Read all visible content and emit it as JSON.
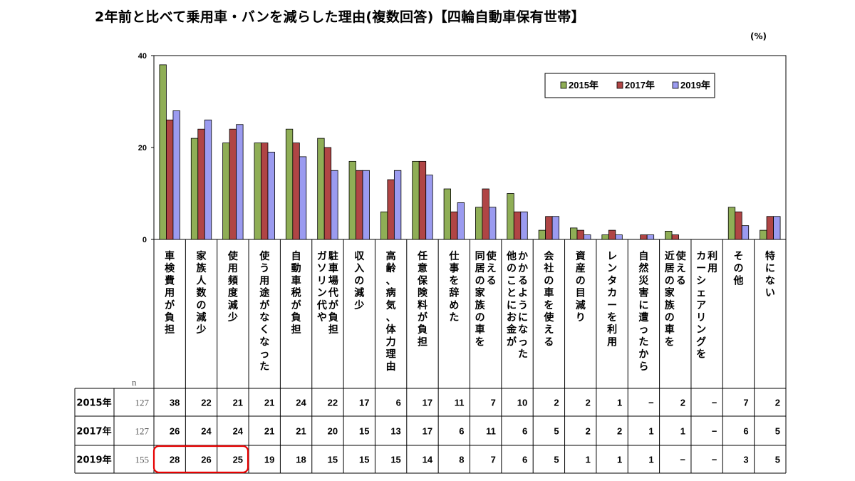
{
  "title": "2年前と比べて乗用車・バンを減らした理由(複数回答)【四輪自動車保有世帯】",
  "unit": "(%)",
  "n_label": "n",
  "highlight_color": "#e60000",
  "chart_data": {
    "type": "bar",
    "ylim": [
      0,
      40
    ],
    "yticks": [
      "0",
      "20",
      "40"
    ],
    "legend_position": "top-right",
    "categories": [
      [
        "車検費用が負担"
      ],
      [
        "家族人数の減少"
      ],
      [
        "使用頻度減少"
      ],
      [
        "使う用途がなくなった"
      ],
      [
        "自動車税が負担"
      ],
      [
        "駐車場代が負担",
        "ガソリン代や"
      ],
      [
        "収入の減少"
      ],
      [
        "高齢、病気、体力理由"
      ],
      [
        "任意保険料が負担"
      ],
      [
        "仕事を辞めた"
      ],
      [
        "使える",
        "同居の家族の車を"
      ],
      [
        "かかるようになった",
        "他のことにお金が"
      ],
      [
        "会社の車を使える"
      ],
      [
        "資産の目減り"
      ],
      [
        "レンタカーを利用"
      ],
      [
        "自然災害に遭ったから"
      ],
      [
        "使える",
        "近居の家族の車を"
      ],
      [
        "利用",
        "カーシェアリングを"
      ],
      [
        "その他"
      ],
      [
        "特にない"
      ]
    ],
    "series": [
      {
        "name": "2015年",
        "color": "#8fae56",
        "n": "127",
        "values": [
          38,
          22,
          21,
          21,
          24,
          22,
          17,
          6,
          17,
          11,
          7,
          10,
          2,
          2.5,
          1,
          null,
          1.8,
          null,
          7,
          2
        ],
        "labels": [
          "38",
          "22",
          "21",
          "21",
          "24",
          "22",
          "17",
          "6",
          "17",
          "11",
          "7",
          "10",
          "2",
          "2",
          "1",
          "−",
          "2",
          "−",
          "7",
          "2"
        ]
      },
      {
        "name": "2017年",
        "color": "#b04545",
        "n": "127",
        "values": [
          26,
          24,
          24,
          21,
          21,
          20,
          15,
          13,
          17,
          6,
          11,
          6,
          5,
          2,
          2,
          1,
          1,
          null,
          6,
          5
        ],
        "labels": [
          "26",
          "24",
          "24",
          "21",
          "21",
          "20",
          "15",
          "13",
          "17",
          "6",
          "11",
          "6",
          "5",
          "2",
          "2",
          "1",
          "1",
          "−",
          "6",
          "5"
        ]
      },
      {
        "name": "2019年",
        "color": "#9b9bf0",
        "n": "155",
        "values": [
          28,
          26,
          25,
          19,
          18,
          15,
          15,
          15,
          14,
          8,
          7,
          6,
          5,
          1,
          1,
          1,
          null,
          null,
          3,
          5
        ],
        "labels": [
          "28",
          "26",
          "25",
          "19",
          "18",
          "15",
          "15",
          "15",
          "14",
          "8",
          "7",
          "6",
          "5",
          "1",
          "1",
          "1",
          "−",
          "−",
          "3",
          "5"
        ]
      }
    ]
  }
}
